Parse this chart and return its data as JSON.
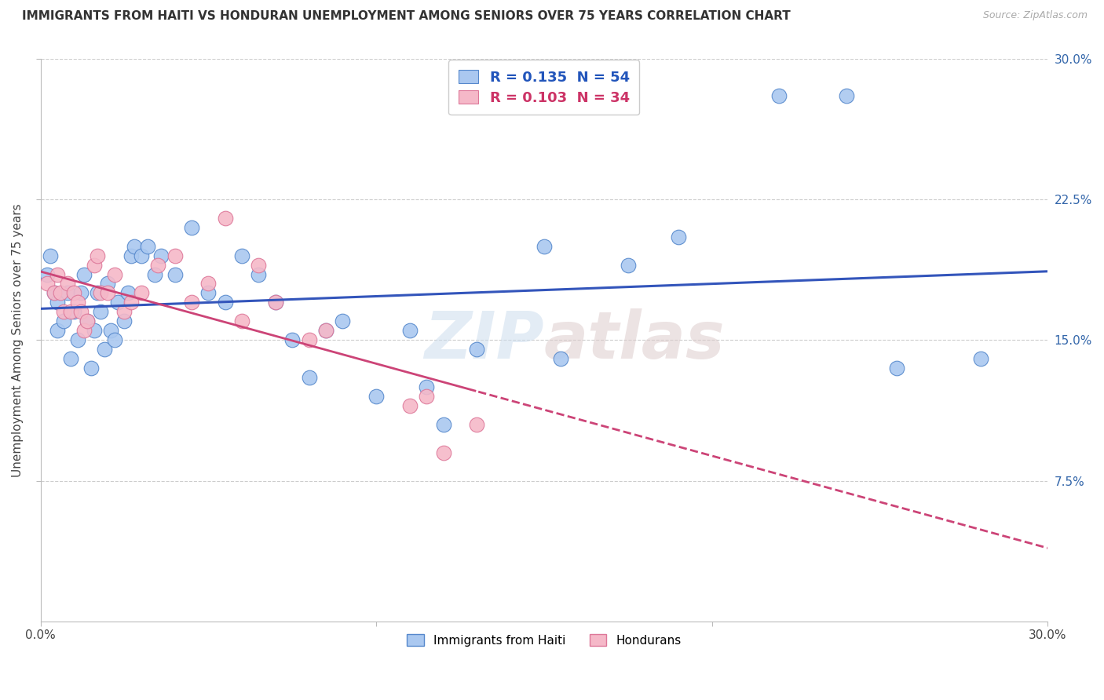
{
  "title": "IMMIGRANTS FROM HAITI VS HONDURAN UNEMPLOYMENT AMONG SENIORS OVER 75 YEARS CORRELATION CHART",
  "source": "Source: ZipAtlas.com",
  "ylabel": "Unemployment Among Seniors over 75 years",
  "xlim": [
    0.0,
    0.3
  ],
  "ylim": [
    0.0,
    0.3
  ],
  "xtick_labels": [
    "0.0%",
    "30.0%"
  ],
  "ytick_positions": [
    0.075,
    0.15,
    0.225,
    0.3
  ],
  "ytick_labels": [
    "7.5%",
    "15.0%",
    "22.5%",
    "30.0%"
  ],
  "series1_label": "Immigrants from Haiti",
  "series2_label": "Hondurans",
  "series1_color": "#aac8f0",
  "series2_color": "#f5b8c8",
  "series1_edge_color": "#5588cc",
  "series2_edge_color": "#dd7799",
  "trendline1_color": "#3355bb",
  "trendline2_color": "#cc4477",
  "watermark": "ZIPatlas",
  "haiti_x": [
    0.002,
    0.003,
    0.004,
    0.005,
    0.005,
    0.007,
    0.008,
    0.009,
    0.01,
    0.011,
    0.012,
    0.013,
    0.014,
    0.015,
    0.016,
    0.017,
    0.018,
    0.019,
    0.02,
    0.021,
    0.022,
    0.023,
    0.025,
    0.026,
    0.027,
    0.028,
    0.03,
    0.032,
    0.034,
    0.036,
    0.04,
    0.045,
    0.05,
    0.055,
    0.06,
    0.065,
    0.07,
    0.075,
    0.08,
    0.085,
    0.09,
    0.1,
    0.11,
    0.115,
    0.12,
    0.13,
    0.15,
    0.155,
    0.175,
    0.19,
    0.22,
    0.24,
    0.255,
    0.28
  ],
  "haiti_y": [
    0.185,
    0.195,
    0.175,
    0.17,
    0.155,
    0.16,
    0.175,
    0.14,
    0.165,
    0.15,
    0.175,
    0.185,
    0.16,
    0.135,
    0.155,
    0.175,
    0.165,
    0.145,
    0.18,
    0.155,
    0.15,
    0.17,
    0.16,
    0.175,
    0.195,
    0.2,
    0.195,
    0.2,
    0.185,
    0.195,
    0.185,
    0.21,
    0.175,
    0.17,
    0.195,
    0.185,
    0.17,
    0.15,
    0.13,
    0.155,
    0.16,
    0.12,
    0.155,
    0.125,
    0.105,
    0.145,
    0.2,
    0.14,
    0.19,
    0.205,
    0.28,
    0.28,
    0.135,
    0.14
  ],
  "honduran_x": [
    0.002,
    0.004,
    0.005,
    0.006,
    0.007,
    0.008,
    0.009,
    0.01,
    0.011,
    0.012,
    0.013,
    0.014,
    0.016,
    0.017,
    0.018,
    0.02,
    0.022,
    0.025,
    0.027,
    0.03,
    0.035,
    0.04,
    0.045,
    0.05,
    0.055,
    0.06,
    0.065,
    0.07,
    0.08,
    0.085,
    0.11,
    0.115,
    0.12,
    0.13
  ],
  "honduran_y": [
    0.18,
    0.175,
    0.185,
    0.175,
    0.165,
    0.18,
    0.165,
    0.175,
    0.17,
    0.165,
    0.155,
    0.16,
    0.19,
    0.195,
    0.175,
    0.175,
    0.185,
    0.165,
    0.17,
    0.175,
    0.19,
    0.195,
    0.17,
    0.18,
    0.215,
    0.16,
    0.19,
    0.17,
    0.15,
    0.155,
    0.115,
    0.12,
    0.09,
    0.105
  ]
}
